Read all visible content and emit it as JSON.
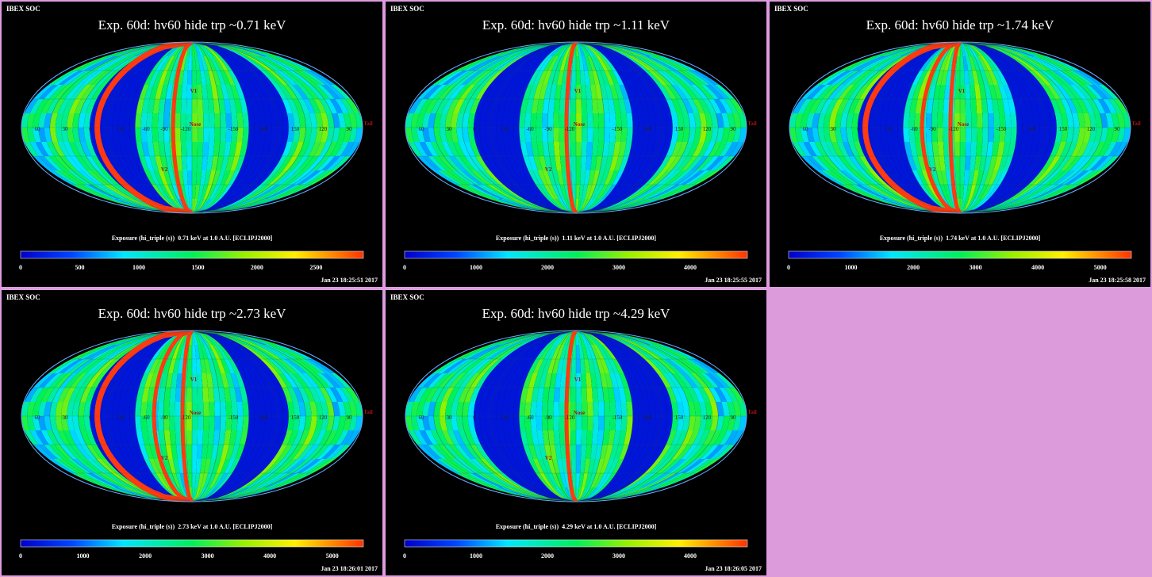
{
  "panels": [
    {
      "corner": "IBEX SOC",
      "title": "Exp.   60d: hv60 hide trp ~0.71 keV",
      "label": "Exposure (hi_triple (s))  0.71 keV at 1.0 A.U. [ECLIPJ2000]",
      "stamp": "Jan 23 18:25:51 2017",
      "ticks": [
        "0",
        "500",
        "1000",
        "1500",
        "2000",
        "2500"
      ],
      "vmax": 2900,
      "redlines": [
        -100,
        -20
      ]
    },
    {
      "corner": "IBEX SOC",
      "title": "Exp.   60d: hv60 hide trp ~1.11 keV",
      "label": "Exposure (hi_triple (s))  1.11 keV at 1.0 A.U. [ECLIPJ2000]",
      "stamp": "Jan 23 18:25:55 2017",
      "ticks": [
        "0",
        "1000",
        "2000",
        "3000",
        "4000"
      ],
      "vmax": 4800,
      "redlines": [
        -10
      ]
    },
    {
      "corner": "IBEX SOC",
      "title": "Exp.   60d: hv60 hide trp ~1.74 keV",
      "label": "Exposure (hi_triple (s))  1.74 keV at 1.0 A.U. [ECLIPJ2000]",
      "stamp": "Jan 23 18:25:58 2017",
      "ticks": [
        "0",
        "1000",
        "2000",
        "3000",
        "4000",
        "5000"
      ],
      "vmax": 5500,
      "redlines": [
        -100,
        -10,
        -40
      ]
    },
    {
      "corner": "IBEX SOC",
      "title": "Exp.   60d: hv60 hide trp ~2.73 keV",
      "label": "Exposure (hi_triple (s))  2.73 keV at 1.0 A.U. [ECLIPJ2000]",
      "stamp": "Jan 23 18:26:01 2017",
      "ticks": [
        "0",
        "1000",
        "2000",
        "3000",
        "4000",
        "5000"
      ],
      "vmax": 5500,
      "redlines": [
        -100,
        -10,
        -40
      ]
    },
    {
      "corner": "IBEX SOC",
      "title": "Exp.   60d: hv60 hide trp ~4.29 keV",
      "label": "Exposure (hi_triple (s))  4.29 keV at 1.0 A.U. [ECLIPJ2000]",
      "stamp": "Jan 23 18:26:05 2017",
      "ticks": [
        "0",
        "1000",
        "2000",
        "3000",
        "4000"
      ],
      "vmax": 4800,
      "redlines": [
        -10
      ]
    }
  ],
  "map_labels": {
    "v1": "V1",
    "v2": "V2",
    "nose": "Nose",
    "tail": "Tail"
  },
  "grid_labels": [
    "60",
    "30",
    "0",
    "-30",
    "-60",
    "-90",
    "-120",
    "-150",
    "180",
    "150",
    "120",
    "90"
  ]
}
